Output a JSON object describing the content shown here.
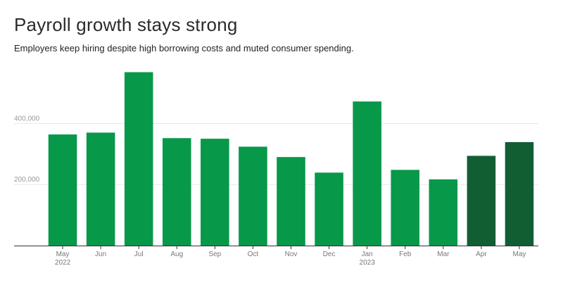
{
  "header": {
    "title": "Payroll growth stays strong",
    "subtitle": "Employers keep hiring despite high borrowing costs and muted consumer spending."
  },
  "colors": {
    "bar": "#07984a",
    "bar_highlight": "#115e32",
    "gridline": "#e8e8e8",
    "axis": "#333333"
  },
  "chart_data": {
    "type": "bar",
    "title": "Payroll growth stays strong",
    "subtitle": "Employers keep hiring despite high borrowing costs and muted consumer spending.",
    "categories": [
      "May",
      "Jun",
      "Jul",
      "Aug",
      "Sep",
      "Oct",
      "Nov",
      "Dec",
      "Jan",
      "Feb",
      "Mar",
      "Apr",
      "May"
    ],
    "year_labels": [
      "2022",
      "",
      "",
      "",
      "",
      "",
      "",
      "",
      "2023",
      "",
      "",
      "",
      ""
    ],
    "values": [
      364000,
      370000,
      568000,
      352000,
      350000,
      324000,
      290000,
      239000,
      472000,
      248000,
      217000,
      294000,
      339000
    ],
    "highlighted": [
      false,
      false,
      false,
      false,
      false,
      false,
      false,
      false,
      false,
      false,
      false,
      true,
      true
    ],
    "ylim": [
      0,
      620000
    ],
    "yticks": [
      200000,
      400000
    ],
    "ytick_labels": [
      "200,000",
      "400,000"
    ],
    "xlabel": "",
    "ylabel": "",
    "grid": true
  }
}
